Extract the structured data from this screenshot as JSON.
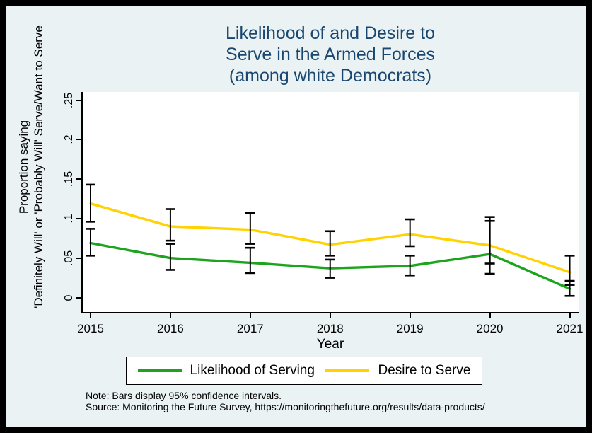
{
  "title": {
    "lines": [
      "Likelihood of and Desire to",
      "Serve in the Armed Forces",
      "(among white Democrats)"
    ]
  },
  "chart_data": {
    "type": "line",
    "x": [
      2015,
      2016,
      2017,
      2018,
      2019,
      2020,
      2021
    ],
    "xlabel": "Year",
    "ylabel_lines": [
      "Proportion saying",
      "'Definitely Will' or 'Probably Will' Serve/Want to Serve"
    ],
    "y_ticks": [
      "0",
      ".05",
      ".1",
      ".15",
      ".2",
      ".25"
    ],
    "y_tick_values": [
      0,
      0.05,
      0.1,
      0.15,
      0.2,
      0.25
    ],
    "ylim": [
      0,
      0.27
    ],
    "grid": false,
    "legend_position": "bottom",
    "error_bars": "95% confidence intervals",
    "series": [
      {
        "name": "Likelihood of Serving",
        "color": "#1CA41C",
        "values": [
          0.069,
          0.05,
          0.044,
          0.037,
          0.04,
          0.055,
          0.011
        ],
        "ci_low": [
          0.053,
          0.035,
          0.031,
          0.025,
          0.028,
          0.043,
          0.002
        ],
        "ci_high": [
          0.087,
          0.068,
          0.063,
          0.048,
          0.053,
          0.097,
          0.021
        ]
      },
      {
        "name": "Desire to Serve",
        "color": "#FFD200",
        "values": [
          0.119,
          0.09,
          0.086,
          0.067,
          0.08,
          0.066,
          0.032
        ],
        "ci_low": [
          0.096,
          0.072,
          0.068,
          0.053,
          0.065,
          0.03,
          0.016
        ],
        "ci_high": [
          0.143,
          0.112,
          0.107,
          0.084,
          0.099,
          0.102,
          0.053
        ]
      }
    ]
  },
  "notes": {
    "line1": "Note: Bars display 95% confidence intervals.",
    "line2": "Source: Monitoring the Future Survey, https://monitoringthefuture.org/results/data-products/"
  },
  "colors": {
    "background": "#EAF2F3",
    "plot_background": "#FFFFFF",
    "title_text": "#1A476F",
    "axis": "#000000",
    "error_bar": "#000000"
  }
}
